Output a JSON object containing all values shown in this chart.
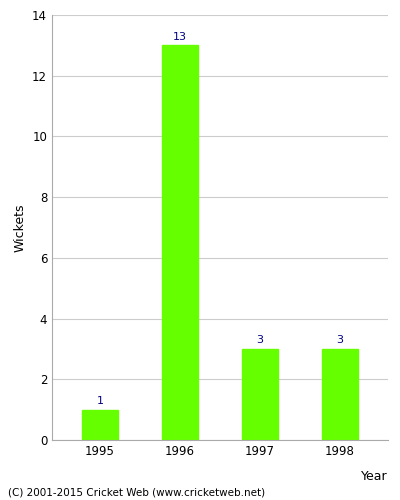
{
  "categories": [
    "1995",
    "1996",
    "1997",
    "1998"
  ],
  "values": [
    1,
    13,
    3,
    3
  ],
  "bar_color": "#66ff00",
  "bar_edgecolor": "#66ff00",
  "ylabel": "Wickets",
  "xlabel": "Year",
  "ylim": [
    0,
    14
  ],
  "yticks": [
    0,
    2,
    4,
    6,
    8,
    10,
    12,
    14
  ],
  "label_color": "#000080",
  "label_fontsize": 8,
  "axis_fontsize": 9,
  "tick_fontsize": 8.5,
  "grid_color": "#cccccc",
  "footer_text": "(C) 2001-2015 Cricket Web (www.cricketweb.net)",
  "footer_fontsize": 7.5,
  "bar_width": 0.45
}
